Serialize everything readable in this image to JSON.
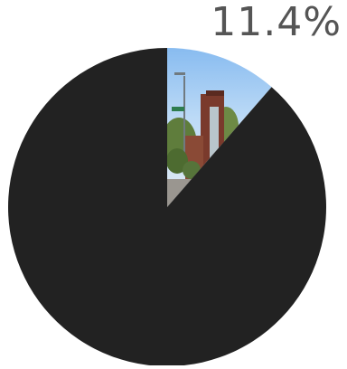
{
  "chart_data": {
    "type": "pie",
    "slices": [
      {
        "value": 11.4,
        "fill": "photo",
        "photo_description": "building-street-photo"
      },
      {
        "value": 88.6,
        "color": "#222222"
      }
    ],
    "data_labels": [
      "11.4%"
    ],
    "colors": {
      "background": "#ffffff",
      "main_slice": "#222222",
      "label": "#555555"
    }
  }
}
